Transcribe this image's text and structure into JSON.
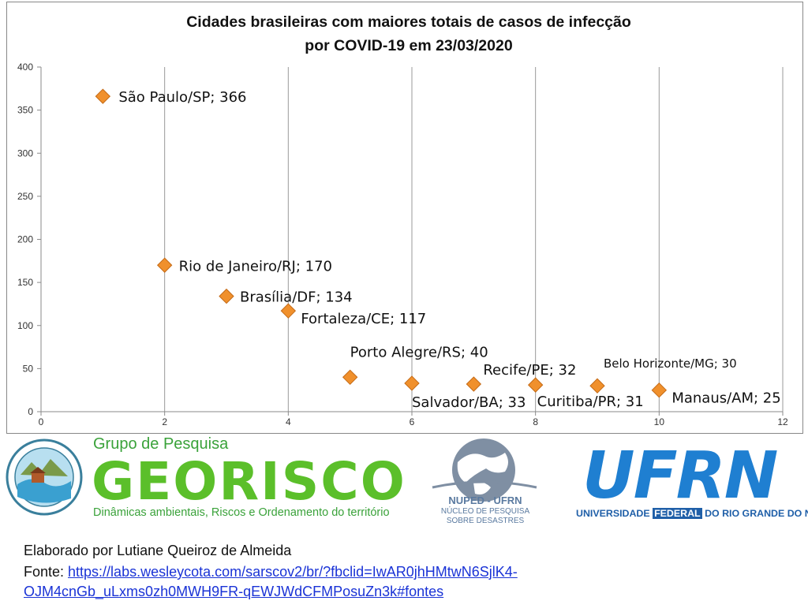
{
  "chart_data": {
    "type": "scatter",
    "title": [
      "Cidades brasileiras com maiores totais de casos de infecção",
      "por COVID-19 em 23/03/2020"
    ],
    "xlabel": "",
    "ylabel": "",
    "xlim": [
      0,
      12
    ],
    "ylim": [
      0,
      400
    ],
    "xticks": [
      0,
      2,
      4,
      6,
      8,
      10,
      12
    ],
    "yticks": [
      0,
      50,
      100,
      150,
      200,
      250,
      300,
      350,
      400
    ],
    "grid": "vertical",
    "marker": "diamond",
    "marker_color": "#f0902c",
    "points": [
      {
        "x": 1,
        "y": 366,
        "label": "São Paulo/SP; 366"
      },
      {
        "x": 2,
        "y": 170,
        "label": "Rio de Janeiro/RJ; 170"
      },
      {
        "x": 3,
        "y": 134,
        "label": "Brasília/DF; 134"
      },
      {
        "x": 4,
        "y": 117,
        "label": "Fortaleza/CE; 117"
      },
      {
        "x": 5,
        "y": 40,
        "label": "Porto Alegre/RS; 40"
      },
      {
        "x": 6,
        "y": 33,
        "label": "Salvador/BA; 33"
      },
      {
        "x": 7,
        "y": 32,
        "label": "Recife/PE; 32"
      },
      {
        "x": 8,
        "y": 31,
        "label": "Curitiba/PR; 31"
      },
      {
        "x": 9,
        "y": 30,
        "label": "Belo Horizonte/MG; 30"
      },
      {
        "x": 10,
        "y": 25,
        "label": "Manaus/AM; 25"
      }
    ]
  },
  "logos": {
    "georisco_group": "Grupo de Pesquisa",
    "georisco_name": "GEORISCO",
    "georisco_tagline": "Dinâmicas ambientais, Riscos e Ordenamento do território",
    "nuped_name": "NUPED - UFRN",
    "nuped_sub1": "NÚCLEO DE PESQUISA",
    "nuped_sub2": "SOBRE DESASTRES",
    "ufrn_name": "UFRN",
    "ufrn_sub_a": "UNIVERSIDADE",
    "ufrn_sub_b": "FEDERAL",
    "ufrn_sub_c": "DO RIO GRANDE DO NORTE"
  },
  "footer": {
    "credit": "Elaborado por Lutiane Queiroz de Almeida",
    "source_label": "Fonte: ",
    "source_url": "https://labs.wesleycota.com/sarscov2/br/?fbclid=IwAR0jhHMtwN6SjlK4-OJM4cnGb_uLxms0zh0MWH9FR-qEWJWdCFMPosuZn3k#fontes"
  }
}
